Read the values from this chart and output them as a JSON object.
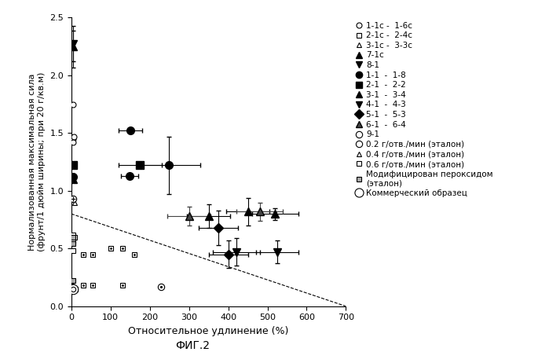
{
  "xlabel": "Относительное удлинение (%)",
  "ylabel": "Нормализованная максимальная сила\n(фрунт/1 дюйм ширины; при 20 г/кв.м)",
  "caption": "ФИГ.2",
  "xlim": [
    0,
    700
  ],
  "ylim": [
    0,
    2.5
  ],
  "xticks": [
    0,
    100,
    200,
    300,
    400,
    500,
    600,
    700
  ],
  "yticks": [
    0.0,
    0.5,
    1.0,
    1.5,
    2.0,
    2.5
  ],
  "dashed_line_x": [
    0,
    700
  ],
  "dashed_line_y": [
    0.8,
    0.0
  ],
  "legend_labels": [
    "1-1с -  1-6с",
    "2-1с -  2-4с",
    "3-1с -  3-3с",
    "7-1с",
    "8-1",
    "1-1  -  1-8",
    "2-1  -  2-2",
    "3-1  -  3-4",
    "4-1  -  4-3",
    "5-1  -  5-3",
    "6-1  -  6-4",
    "9-1",
    "0.2 г/отв./мин (эталон)",
    "0.4 г/отв./мин (эталон)",
    "0.6 г/отв./мин (эталон)",
    "Модифицирован пероксидом\n(эталон)",
    "Коммерческий образец"
  ]
}
